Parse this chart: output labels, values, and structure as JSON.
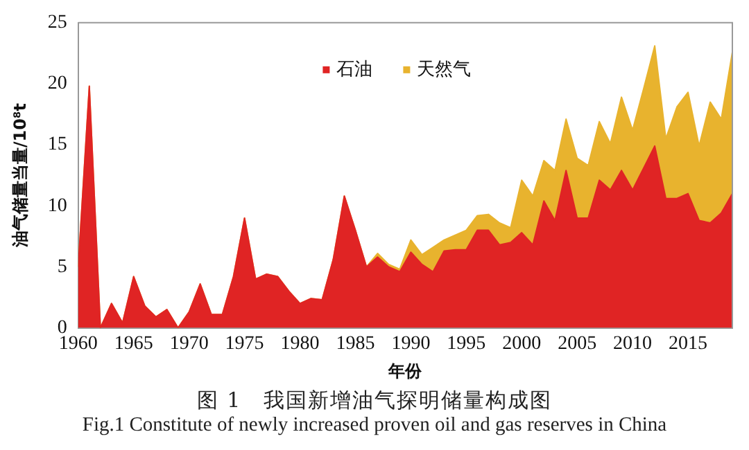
{
  "chart_data": {
    "type": "area",
    "stacked": true,
    "title": "图 1　我国新增油气探明储量构成图",
    "subtitle": "Fig.1 Constitute of newly increased proven oil and gas reserves in China",
    "xlabel": "年份",
    "ylabel": "油气储量当量/10⁸t",
    "x": [
      1960,
      1961,
      1962,
      1963,
      1964,
      1965,
      1966,
      1967,
      1968,
      1969,
      1970,
      1971,
      1972,
      1973,
      1974,
      1975,
      1976,
      1977,
      1978,
      1979,
      1980,
      1981,
      1982,
      1983,
      1984,
      1985,
      1986,
      1987,
      1988,
      1989,
      1990,
      1991,
      1992,
      1993,
      1994,
      1995,
      1996,
      1997,
      1998,
      1999,
      2000,
      2001,
      2002,
      2003,
      2004,
      2005,
      2006,
      2007,
      2008,
      2009,
      2010,
      2011,
      2012,
      2013,
      2014,
      2015,
      2016,
      2017,
      2018,
      2019
    ],
    "series": [
      {
        "name": "石油",
        "color": "#e02424",
        "values": [
          5.0,
          19.8,
          0,
          2.0,
          0.4,
          4.2,
          1.8,
          0.9,
          1.5,
          0,
          1.3,
          3.6,
          1.1,
          1.1,
          4.2,
          9.0,
          4.0,
          4.4,
          4.2,
          3.0,
          2.0,
          2.4,
          2.3,
          5.6,
          10.8,
          8.0,
          5.0,
          5.8,
          5.0,
          4.6,
          6.2,
          5.2,
          4.6,
          6.3,
          6.4,
          6.4,
          8.0,
          8.0,
          6.8,
          7.0,
          7.8,
          6.8,
          10.4,
          8.8,
          12.9,
          9.0,
          9.0,
          12.1,
          11.3,
          12.9,
          11.3,
          13.1,
          14.9,
          10.6,
          10.6,
          11.0,
          8.8,
          8.6,
          9.4,
          11.0
        ]
      },
      {
        "name": "天然气",
        "color": "#e8b32e",
        "values": [
          0,
          0,
          0,
          0,
          0,
          0,
          0,
          0,
          0,
          0,
          0,
          0,
          0,
          0,
          0,
          0,
          0,
          0,
          0,
          0,
          0,
          0,
          0,
          0,
          0,
          0,
          0,
          0.3,
          0.2,
          0.2,
          1.0,
          0.8,
          2.0,
          0.9,
          1.2,
          1.6,
          1.2,
          1.3,
          1.8,
          1.2,
          4.3,
          4.0,
          3.3,
          4.1,
          4.2,
          4.9,
          4.3,
          4.8,
          3.8,
          6.0,
          4.9,
          6.5,
          8.2,
          4.9,
          7.5,
          8.3,
          6.1,
          9.9,
          7.7,
          11.6
        ]
      }
    ],
    "xlim": [
      1960,
      2019
    ],
    "xticks": [
      1960,
      1965,
      1970,
      1975,
      1980,
      1985,
      1990,
      1995,
      2000,
      2005,
      2010,
      2015
    ],
    "ylim": [
      0,
      25
    ],
    "yticks": [
      0,
      5,
      10,
      15,
      20,
      25
    ],
    "grid": false,
    "legend": "top",
    "marker": "none"
  }
}
